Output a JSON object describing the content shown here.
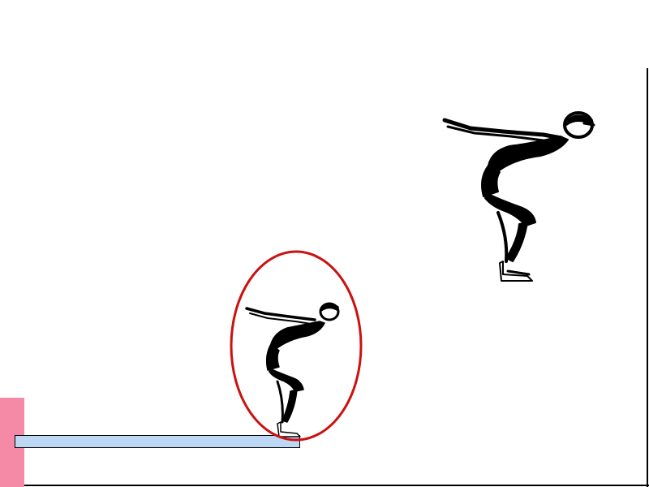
{
  "colors": {
    "background": "#ffffff",
    "board_fill": "#bcd8f4",
    "pink_block": "#f48aa6",
    "highlight_ring": "#cc1111",
    "figure_ink": "#000000"
  },
  "icons": {
    "large_figure": "diver-ready-stance-icon",
    "small_figure": "diver-ready-stance-icon",
    "ring": "highlight-ellipse"
  }
}
